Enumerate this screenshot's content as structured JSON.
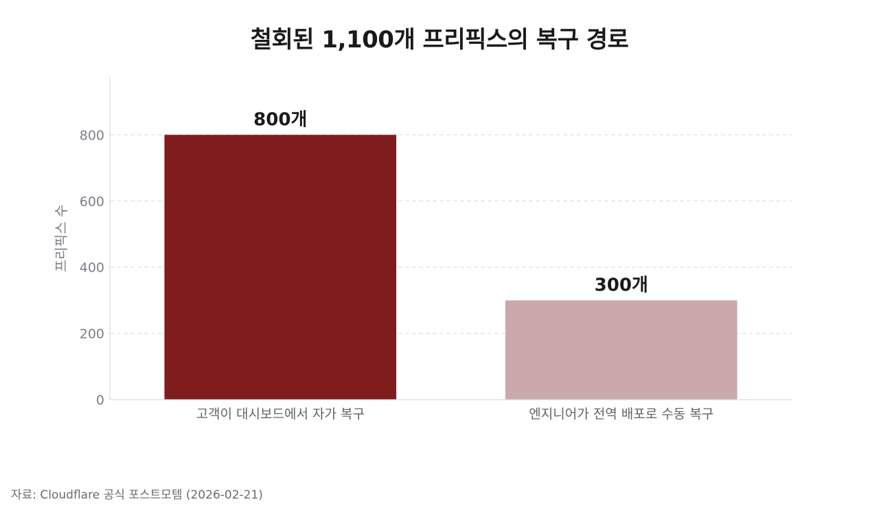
{
  "chart_data": {
    "type": "bar",
    "title": "철회된 1,100개 프리픽스의 복구 경로",
    "ylabel": "프리픽스 수",
    "xlabel": "",
    "categories": [
      "고객이 대시보드에서 자가 복구",
      "엔지니어가 전역 배포로 수동 복구"
    ],
    "values": [
      800,
      300
    ],
    "data_labels": [
      "800개",
      "300개"
    ],
    "bar_colors": [
      "#7f1c1d",
      "#cba9a8"
    ],
    "yticks": [
      0,
      200,
      400,
      600,
      800
    ],
    "ylim": [
      0,
      975
    ],
    "grid": "horizontal dashed",
    "legend": "none"
  },
  "source": "자료: Cloudflare 공식 포스트모템 (2026-02-21)"
}
